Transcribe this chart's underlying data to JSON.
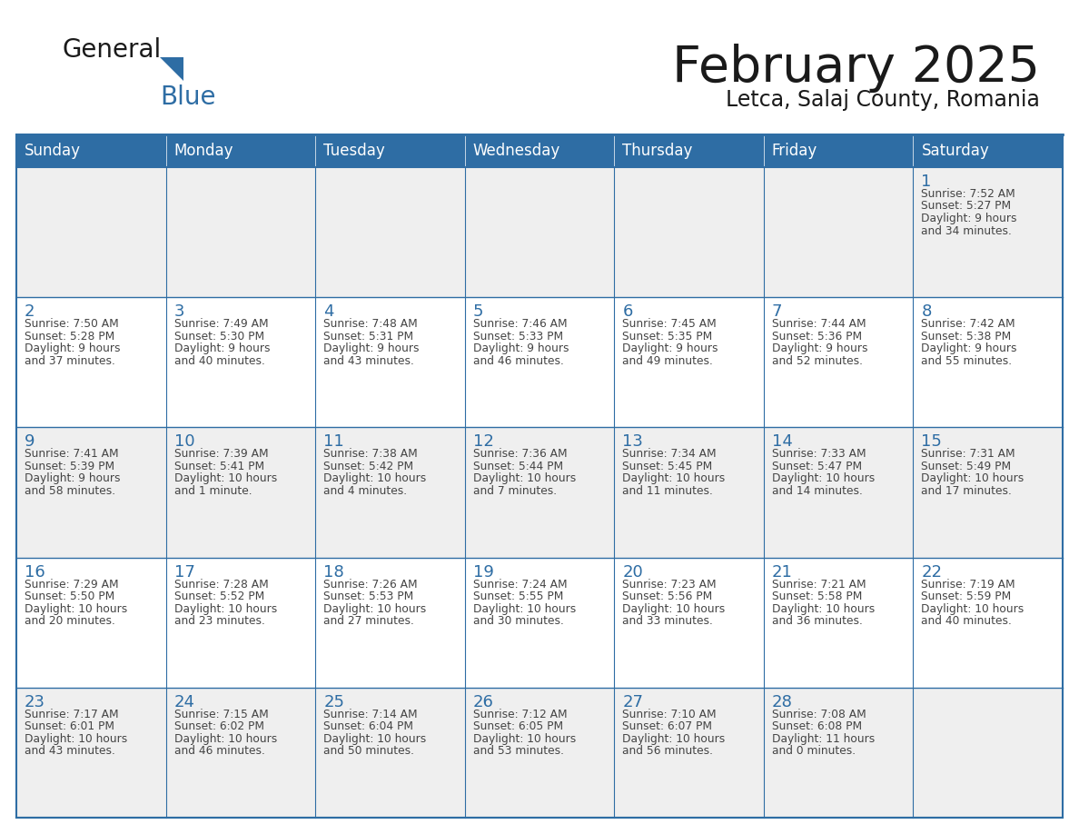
{
  "title": "February 2025",
  "subtitle": "Letca, Salaj County, Romania",
  "header_bg": "#2E6DA4",
  "header_text_color": "#FFFFFF",
  "cell_bg_odd": "#EFEFEF",
  "cell_bg_even": "#FFFFFF",
  "border_color": "#2E6DA4",
  "days_of_week": [
    "Sunday",
    "Monday",
    "Tuesday",
    "Wednesday",
    "Thursday",
    "Friday",
    "Saturday"
  ],
  "title_color": "#1a1a1a",
  "subtitle_color": "#1a1a1a",
  "day_num_color": "#2E6DA4",
  "text_color": "#444444",
  "logo_general_color": "#1a1a1a",
  "logo_blue_color": "#2E6DA4",
  "logo_triangle_color": "#2E6DA4",
  "calendar": [
    [
      null,
      null,
      null,
      null,
      null,
      null,
      {
        "day": 1,
        "sunrise": "7:52 AM",
        "sunset": "5:27 PM",
        "daylight_h": "9 hours",
        "daylight_m": "and 34 minutes."
      }
    ],
    [
      {
        "day": 2,
        "sunrise": "7:50 AM",
        "sunset": "5:28 PM",
        "daylight_h": "9 hours",
        "daylight_m": "and 37 minutes."
      },
      {
        "day": 3,
        "sunrise": "7:49 AM",
        "sunset": "5:30 PM",
        "daylight_h": "9 hours",
        "daylight_m": "and 40 minutes."
      },
      {
        "day": 4,
        "sunrise": "7:48 AM",
        "sunset": "5:31 PM",
        "daylight_h": "9 hours",
        "daylight_m": "and 43 minutes."
      },
      {
        "day": 5,
        "sunrise": "7:46 AM",
        "sunset": "5:33 PM",
        "daylight_h": "9 hours",
        "daylight_m": "and 46 minutes."
      },
      {
        "day": 6,
        "sunrise": "7:45 AM",
        "sunset": "5:35 PM",
        "daylight_h": "9 hours",
        "daylight_m": "and 49 minutes."
      },
      {
        "day": 7,
        "sunrise": "7:44 AM",
        "sunset": "5:36 PM",
        "daylight_h": "9 hours",
        "daylight_m": "and 52 minutes."
      },
      {
        "day": 8,
        "sunrise": "7:42 AM",
        "sunset": "5:38 PM",
        "daylight_h": "9 hours",
        "daylight_m": "and 55 minutes."
      }
    ],
    [
      {
        "day": 9,
        "sunrise": "7:41 AM",
        "sunset": "5:39 PM",
        "daylight_h": "9 hours",
        "daylight_m": "and 58 minutes."
      },
      {
        "day": 10,
        "sunrise": "7:39 AM",
        "sunset": "5:41 PM",
        "daylight_h": "10 hours",
        "daylight_m": "and 1 minute."
      },
      {
        "day": 11,
        "sunrise": "7:38 AM",
        "sunset": "5:42 PM",
        "daylight_h": "10 hours",
        "daylight_m": "and 4 minutes."
      },
      {
        "day": 12,
        "sunrise": "7:36 AM",
        "sunset": "5:44 PM",
        "daylight_h": "10 hours",
        "daylight_m": "and 7 minutes."
      },
      {
        "day": 13,
        "sunrise": "7:34 AM",
        "sunset": "5:45 PM",
        "daylight_h": "10 hours",
        "daylight_m": "and 11 minutes."
      },
      {
        "day": 14,
        "sunrise": "7:33 AM",
        "sunset": "5:47 PM",
        "daylight_h": "10 hours",
        "daylight_m": "and 14 minutes."
      },
      {
        "day": 15,
        "sunrise": "7:31 AM",
        "sunset": "5:49 PM",
        "daylight_h": "10 hours",
        "daylight_m": "and 17 minutes."
      }
    ],
    [
      {
        "day": 16,
        "sunrise": "7:29 AM",
        "sunset": "5:50 PM",
        "daylight_h": "10 hours",
        "daylight_m": "and 20 minutes."
      },
      {
        "day": 17,
        "sunrise": "7:28 AM",
        "sunset": "5:52 PM",
        "daylight_h": "10 hours",
        "daylight_m": "and 23 minutes."
      },
      {
        "day": 18,
        "sunrise": "7:26 AM",
        "sunset": "5:53 PM",
        "daylight_h": "10 hours",
        "daylight_m": "and 27 minutes."
      },
      {
        "day": 19,
        "sunrise": "7:24 AM",
        "sunset": "5:55 PM",
        "daylight_h": "10 hours",
        "daylight_m": "and 30 minutes."
      },
      {
        "day": 20,
        "sunrise": "7:23 AM",
        "sunset": "5:56 PM",
        "daylight_h": "10 hours",
        "daylight_m": "and 33 minutes."
      },
      {
        "day": 21,
        "sunrise": "7:21 AM",
        "sunset": "5:58 PM",
        "daylight_h": "10 hours",
        "daylight_m": "and 36 minutes."
      },
      {
        "day": 22,
        "sunrise": "7:19 AM",
        "sunset": "5:59 PM",
        "daylight_h": "10 hours",
        "daylight_m": "and 40 minutes."
      }
    ],
    [
      {
        "day": 23,
        "sunrise": "7:17 AM",
        "sunset": "6:01 PM",
        "daylight_h": "10 hours",
        "daylight_m": "and 43 minutes."
      },
      {
        "day": 24,
        "sunrise": "7:15 AM",
        "sunset": "6:02 PM",
        "daylight_h": "10 hours",
        "daylight_m": "and 46 minutes."
      },
      {
        "day": 25,
        "sunrise": "7:14 AM",
        "sunset": "6:04 PM",
        "daylight_h": "10 hours",
        "daylight_m": "and 50 minutes."
      },
      {
        "day": 26,
        "sunrise": "7:12 AM",
        "sunset": "6:05 PM",
        "daylight_h": "10 hours",
        "daylight_m": "and 53 minutes."
      },
      {
        "day": 27,
        "sunrise": "7:10 AM",
        "sunset": "6:07 PM",
        "daylight_h": "10 hours",
        "daylight_m": "and 56 minutes."
      },
      {
        "day": 28,
        "sunrise": "7:08 AM",
        "sunset": "6:08 PM",
        "daylight_h": "11 hours",
        "daylight_m": "and 0 minutes."
      },
      null
    ]
  ]
}
